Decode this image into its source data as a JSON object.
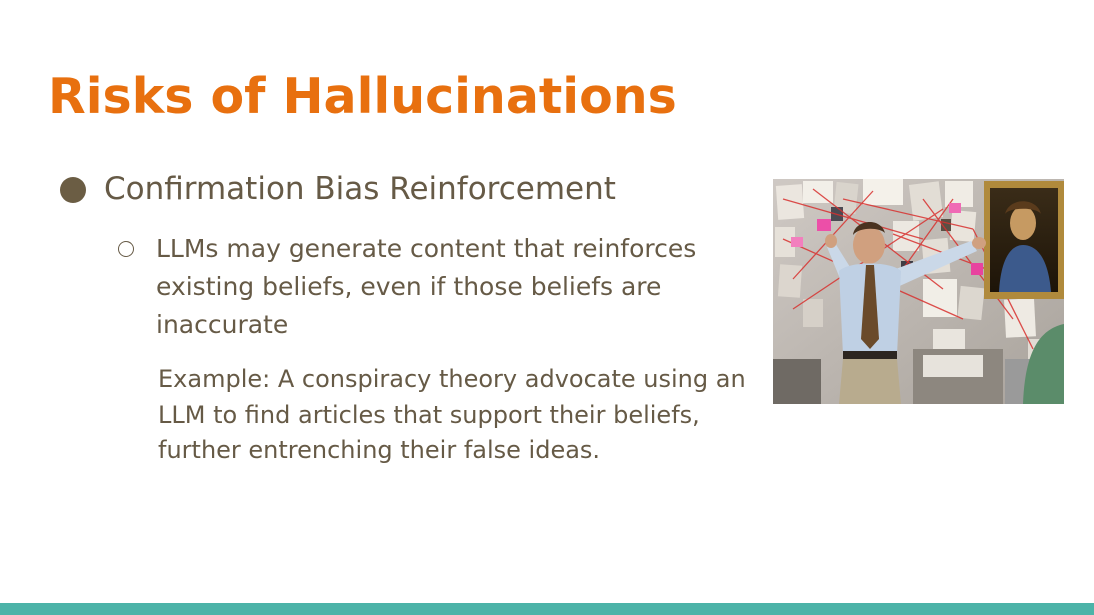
{
  "slide": {
    "title": "Risks of Hallucinations",
    "bullet": {
      "text": "Confirmation Bias Reinforcement",
      "sub_bullet": "LLMs may generate content that reinforces existing beliefs, even if those beliefs are inaccurate",
      "example": "Example: A conspiracy theory advocate using an LLM to find articles that support their beliefs, further entrenching their false ideas."
    }
  },
  "colors": {
    "title": "#e8700f",
    "body_text": "#665a46",
    "bullet_dot": "#6b5d44",
    "accent_bar": "#4cb3a8"
  },
  "image": {
    "subject": "conspiracy-board-meme"
  }
}
